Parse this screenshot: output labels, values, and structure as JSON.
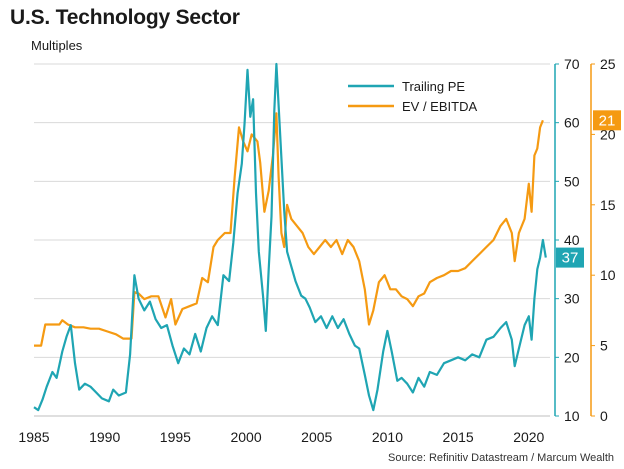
{
  "title": "U.S. Technology Sector",
  "subtitle": "Multiples",
  "source": "Source: Refinitiv Datastream / Marcum Wealth",
  "colors": {
    "trailing_pe": "#1fa5b3",
    "ev_ebitda": "#f59a12",
    "grid": "#d9d9d9",
    "axis_text": "#1a1a1a"
  },
  "chart_data": {
    "type": "line",
    "grid": "horizontal",
    "legend_position": "top-right",
    "x_ticks": [
      1985,
      1990,
      1995,
      2000,
      2005,
      2010,
      2015,
      2020
    ],
    "xlim": [
      1985,
      2021.5
    ],
    "y_left_ticks": [
      10,
      20,
      30,
      40,
      50,
      60,
      70
    ],
    "ylim_left": [
      10,
      70
    ],
    "y_right_ticks": [
      0,
      5,
      10,
      15,
      20,
      25
    ],
    "ylim_right": [
      0,
      25
    ],
    "series": [
      {
        "name": "Trailing PE",
        "axis": "left",
        "latest_label": "37",
        "points": [
          [
            1985.0,
            11.5
          ],
          [
            1985.3,
            11.0
          ],
          [
            1985.6,
            12.8
          ],
          [
            1985.9,
            15.0
          ],
          [
            1986.3,
            17.5
          ],
          [
            1986.6,
            16.5
          ],
          [
            1987.0,
            21.0
          ],
          [
            1987.3,
            23.5
          ],
          [
            1987.6,
            25.5
          ],
          [
            1987.9,
            19.0
          ],
          [
            1988.2,
            14.5
          ],
          [
            1988.6,
            15.5
          ],
          [
            1989.0,
            15.0
          ],
          [
            1989.4,
            14.0
          ],
          [
            1989.8,
            13.0
          ],
          [
            1990.3,
            12.5
          ],
          [
            1990.6,
            14.5
          ],
          [
            1991.0,
            13.5
          ],
          [
            1991.5,
            14.0
          ],
          [
            1991.8,
            20.5
          ],
          [
            1992.1,
            34.0
          ],
          [
            1992.4,
            30.0
          ],
          [
            1992.8,
            28.0
          ],
          [
            1993.2,
            29.5
          ],
          [
            1993.6,
            26.5
          ],
          [
            1994.0,
            25.0
          ],
          [
            1994.4,
            25.5
          ],
          [
            1994.8,
            22.0
          ],
          [
            1995.2,
            19.0
          ],
          [
            1995.6,
            21.5
          ],
          [
            1996.0,
            20.5
          ],
          [
            1996.4,
            24.0
          ],
          [
            1996.8,
            21.0
          ],
          [
            1997.2,
            25.0
          ],
          [
            1997.6,
            27.0
          ],
          [
            1998.0,
            25.5
          ],
          [
            1998.4,
            34.0
          ],
          [
            1998.8,
            33.0
          ],
          [
            1999.1,
            39.5
          ],
          [
            1999.4,
            48.0
          ],
          [
            1999.7,
            53.0
          ],
          [
            1999.9,
            60.0
          ],
          [
            2000.1,
            69.0
          ],
          [
            2000.3,
            61.0
          ],
          [
            2000.5,
            64.0
          ],
          [
            2000.7,
            48.0
          ],
          [
            2000.9,
            38.0
          ],
          [
            2001.2,
            30.5
          ],
          [
            2001.4,
            24.5
          ],
          [
            2001.6,
            35.0
          ],
          [
            2001.8,
            44.0
          ],
          [
            2002.0,
            62.0
          ],
          [
            2002.15,
            70.0
          ],
          [
            2002.3,
            63.0
          ],
          [
            2002.5,
            54.0
          ],
          [
            2002.7,
            45.0
          ],
          [
            2002.9,
            38.0
          ],
          [
            2003.2,
            35.5
          ],
          [
            2003.5,
            33.0
          ],
          [
            2003.9,
            30.5
          ],
          [
            2004.2,
            30.0
          ],
          [
            2004.5,
            28.5
          ],
          [
            2004.9,
            26.0
          ],
          [
            2005.3,
            27.0
          ],
          [
            2005.7,
            25.0
          ],
          [
            2006.1,
            27.0
          ],
          [
            2006.5,
            25.0
          ],
          [
            2006.9,
            26.5
          ],
          [
            2007.3,
            24.0
          ],
          [
            2007.7,
            22.0
          ],
          [
            2008.0,
            21.5
          ],
          [
            2008.4,
            17.0
          ],
          [
            2008.7,
            13.5
          ],
          [
            2009.0,
            11.0
          ],
          [
            2009.3,
            14.5
          ],
          [
            2009.7,
            21.0
          ],
          [
            2010.0,
            24.5
          ],
          [
            2010.3,
            21.0
          ],
          [
            2010.7,
            16.0
          ],
          [
            2011.0,
            16.5
          ],
          [
            2011.4,
            15.5
          ],
          [
            2011.8,
            14.0
          ],
          [
            2012.2,
            16.5
          ],
          [
            2012.6,
            15.0
          ],
          [
            2013.0,
            17.5
          ],
          [
            2013.5,
            17.0
          ],
          [
            2014.0,
            19.0
          ],
          [
            2014.5,
            19.5
          ],
          [
            2015.0,
            20.0
          ],
          [
            2015.5,
            19.5
          ],
          [
            2016.0,
            20.5
          ],
          [
            2016.5,
            20.0
          ],
          [
            2017.0,
            23.0
          ],
          [
            2017.5,
            23.5
          ],
          [
            2018.0,
            25.0
          ],
          [
            2018.4,
            26.0
          ],
          [
            2018.8,
            23.0
          ],
          [
            2019.0,
            18.5
          ],
          [
            2019.3,
            21.5
          ],
          [
            2019.7,
            25.5
          ],
          [
            2020.0,
            27.0
          ],
          [
            2020.2,
            23.0
          ],
          [
            2020.4,
            30.0
          ],
          [
            2020.6,
            35.0
          ],
          [
            2020.8,
            37.0
          ],
          [
            2021.0,
            40.0
          ],
          [
            2021.2,
            37.0
          ]
        ]
      },
      {
        "name": "EV / EBITDA",
        "axis": "right",
        "latest_label": "21",
        "points": [
          [
            1985.0,
            5.0
          ],
          [
            1985.5,
            5.0
          ],
          [
            1985.8,
            6.5
          ],
          [
            1986.3,
            6.5
          ],
          [
            1986.8,
            6.5
          ],
          [
            1987.0,
            6.8
          ],
          [
            1987.4,
            6.5
          ],
          [
            1987.9,
            6.3
          ],
          [
            1988.5,
            6.3
          ],
          [
            1989.0,
            6.2
          ],
          [
            1989.6,
            6.2
          ],
          [
            1990.2,
            6.0
          ],
          [
            1990.8,
            5.8
          ],
          [
            1991.3,
            5.5
          ],
          [
            1991.9,
            5.5
          ],
          [
            1992.1,
            8.8
          ],
          [
            1992.4,
            8.7
          ],
          [
            1992.8,
            8.3
          ],
          [
            1993.3,
            8.5
          ],
          [
            1993.8,
            8.5
          ],
          [
            1994.3,
            7.0
          ],
          [
            1994.7,
            8.3
          ],
          [
            1995.0,
            6.5
          ],
          [
            1995.5,
            7.6
          ],
          [
            1996.0,
            7.8
          ],
          [
            1996.5,
            8.0
          ],
          [
            1996.9,
            9.8
          ],
          [
            1997.3,
            9.5
          ],
          [
            1997.7,
            12.0
          ],
          [
            1998.0,
            12.5
          ],
          [
            1998.5,
            13.0
          ],
          [
            1998.9,
            13.0
          ],
          [
            1999.2,
            17.0
          ],
          [
            1999.5,
            20.5
          ],
          [
            1999.8,
            19.5
          ],
          [
            2000.1,
            18.8
          ],
          [
            2000.4,
            20.0
          ],
          [
            2000.8,
            19.5
          ],
          [
            2001.0,
            18.0
          ],
          [
            2001.3,
            14.5
          ],
          [
            2001.6,
            16.0
          ],
          [
            2001.9,
            18.5
          ],
          [
            2002.15,
            21.5
          ],
          [
            2002.3,
            17.0
          ],
          [
            2002.5,
            13.0
          ],
          [
            2002.7,
            12.0
          ],
          [
            2002.9,
            15.0
          ],
          [
            2003.2,
            14.0
          ],
          [
            2003.6,
            13.5
          ],
          [
            2004.0,
            13.0
          ],
          [
            2004.4,
            12.0
          ],
          [
            2004.8,
            11.5
          ],
          [
            2005.2,
            12.0
          ],
          [
            2005.6,
            12.5
          ],
          [
            2006.0,
            12.0
          ],
          [
            2006.4,
            12.5
          ],
          [
            2006.8,
            11.5
          ],
          [
            2007.2,
            12.5
          ],
          [
            2007.6,
            12.0
          ],
          [
            2008.0,
            11.0
          ],
          [
            2008.4,
            9.0
          ],
          [
            2008.7,
            6.5
          ],
          [
            2009.0,
            7.5
          ],
          [
            2009.4,
            9.5
          ],
          [
            2009.8,
            10.0
          ],
          [
            2010.2,
            9.0
          ],
          [
            2010.6,
            9.0
          ],
          [
            2011.0,
            8.5
          ],
          [
            2011.4,
            8.3
          ],
          [
            2011.8,
            7.8
          ],
          [
            2012.2,
            8.5
          ],
          [
            2012.6,
            8.7
          ],
          [
            2013.0,
            9.5
          ],
          [
            2013.5,
            9.8
          ],
          [
            2014.0,
            10.0
          ],
          [
            2014.5,
            10.3
          ],
          [
            2015.0,
            10.3
          ],
          [
            2015.5,
            10.5
          ],
          [
            2016.0,
            11.0
          ],
          [
            2016.5,
            11.5
          ],
          [
            2017.0,
            12.0
          ],
          [
            2017.5,
            12.5
          ],
          [
            2018.0,
            13.5
          ],
          [
            2018.4,
            14.0
          ],
          [
            2018.8,
            13.0
          ],
          [
            2019.0,
            11.0
          ],
          [
            2019.3,
            13.0
          ],
          [
            2019.7,
            14.0
          ],
          [
            2020.0,
            16.5
          ],
          [
            2020.2,
            14.5
          ],
          [
            2020.4,
            18.5
          ],
          [
            2020.6,
            19.0
          ],
          [
            2020.8,
            20.5
          ],
          [
            2021.0,
            21.0
          ]
        ]
      }
    ]
  }
}
